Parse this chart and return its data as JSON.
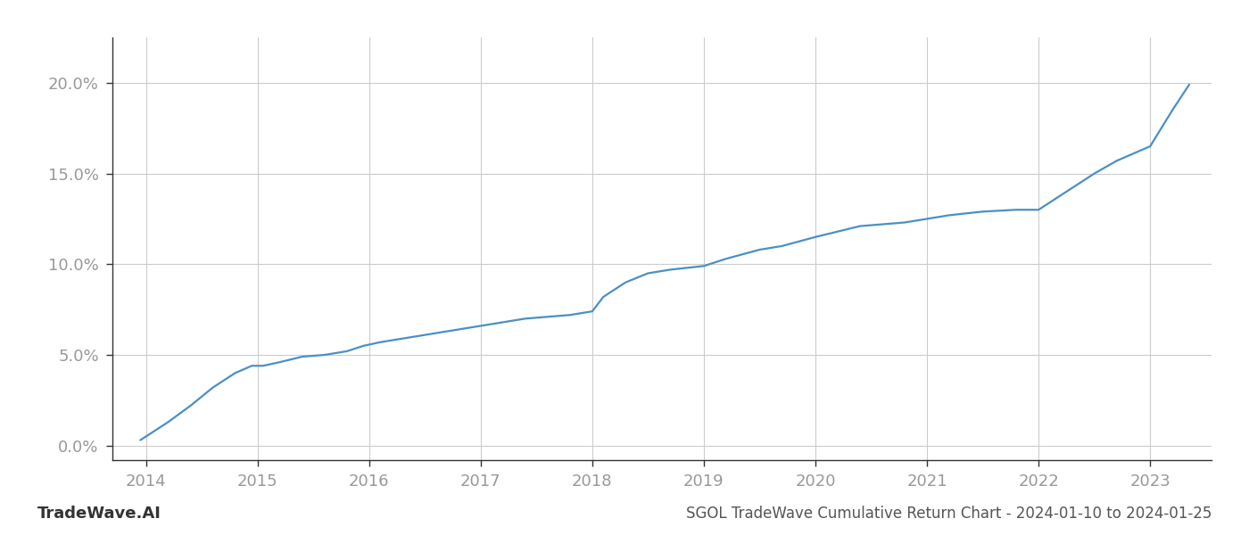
{
  "title": "SGOL TradeWave Cumulative Return Chart - 2024-01-10 to 2024-01-25",
  "watermark": "TradeWave.AI",
  "line_color": "#4a90c4",
  "background_color": "#ffffff",
  "grid_color": "#cccccc",
  "x_years": [
    2013.95,
    2014.05,
    2014.2,
    2014.4,
    2014.6,
    2014.8,
    2014.95,
    2015.05,
    2015.2,
    2015.4,
    2015.6,
    2015.8,
    2015.95,
    2016.1,
    2016.3,
    2016.5,
    2016.7,
    2016.9,
    2017.0,
    2017.2,
    2017.4,
    2017.6,
    2017.8,
    2018.0,
    2018.1,
    2018.3,
    2018.5,
    2018.7,
    2019.0,
    2019.2,
    2019.5,
    2019.7,
    2020.0,
    2020.2,
    2020.4,
    2020.6,
    2020.8,
    2021.0,
    2021.2,
    2021.5,
    2021.8,
    2022.0,
    2022.2,
    2022.5,
    2022.7,
    2023.0,
    2023.2,
    2023.35
  ],
  "y_values": [
    0.003,
    0.007,
    0.013,
    0.022,
    0.032,
    0.04,
    0.044,
    0.044,
    0.046,
    0.049,
    0.05,
    0.052,
    0.055,
    0.057,
    0.059,
    0.061,
    0.063,
    0.065,
    0.066,
    0.068,
    0.07,
    0.071,
    0.072,
    0.074,
    0.082,
    0.09,
    0.095,
    0.097,
    0.099,
    0.103,
    0.108,
    0.11,
    0.115,
    0.118,
    0.121,
    0.122,
    0.123,
    0.125,
    0.127,
    0.129,
    0.13,
    0.13,
    0.138,
    0.15,
    0.157,
    0.165,
    0.185,
    0.199
  ],
  "xlim": [
    2013.7,
    2023.55
  ],
  "ylim": [
    -0.008,
    0.225
  ],
  "yticks": [
    0.0,
    0.05,
    0.1,
    0.15,
    0.2
  ],
  "ytick_labels": [
    "0.0%",
    "5.0%",
    "10.0%",
    "15.0%",
    "20.0%"
  ],
  "xticks": [
    2014,
    2015,
    2016,
    2017,
    2018,
    2019,
    2020,
    2021,
    2022,
    2023
  ],
  "line_width": 1.6,
  "title_fontsize": 12,
  "watermark_fontsize": 13,
  "tick_fontsize": 13,
  "tick_color": "#999999",
  "spine_color": "#333333"
}
